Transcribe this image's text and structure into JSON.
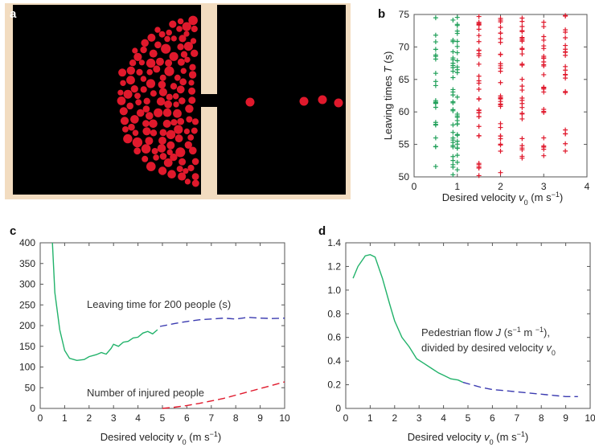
{
  "panels": {
    "a": {
      "letter": "a",
      "colors": {
        "background": "#000000",
        "wall": "#f2dcc0",
        "pedestrian": "#e0192c"
      }
    },
    "b": {
      "letter": "b"
    },
    "c": {
      "letter": "c"
    },
    "d": {
      "letter": "d"
    }
  },
  "chart_data": [
    {
      "panel": "b",
      "type": "scatter",
      "xlabel": "Desired velocity v0 (m s−1)",
      "xlabel_parts": {
        "main": "Desired velocity ",
        "v": "v",
        "sub": "0",
        "units": " (m s",
        "sup": "−1",
        "close": ")"
      },
      "ylabel": "Leaving times T (s)",
      "ylabel_parts": {
        "main": "Leaving times ",
        "var": "T",
        "units": " (s)"
      },
      "xlim": [
        0,
        4
      ],
      "ylim": [
        50,
        75
      ],
      "xticks": [
        "0",
        "1",
        "2",
        "3",
        "4"
      ],
      "yticks": [
        "50",
        "55",
        "60",
        "65",
        "70",
        "75"
      ],
      "marker": "+",
      "series": [
        {
          "color": "#21a05a",
          "x": 0.5,
          "y_range": [
            51,
            75
          ],
          "count": 22
        },
        {
          "color": "#21a05a",
          "x": 0.9,
          "y_range": [
            50,
            75
          ],
          "count": 30
        },
        {
          "color": "#21a05a",
          "x": 1.0,
          "y_range": [
            50,
            75
          ],
          "count": 28
        },
        {
          "color": "#e0192c",
          "x": 1.5,
          "y_range": [
            50,
            75
          ],
          "count": 34
        },
        {
          "color": "#e0192c",
          "x": 2.0,
          "y_range": [
            50,
            75
          ],
          "count": 32
        },
        {
          "color": "#e0192c",
          "x": 2.5,
          "y_range": [
            51,
            75
          ],
          "count": 30
        },
        {
          "color": "#e0192c",
          "x": 3.0,
          "y_range": [
            53,
            74
          ],
          "count": 26
        },
        {
          "color": "#e0192c",
          "x": 3.5,
          "y_range": [
            53,
            75
          ],
          "count": 22
        }
      ]
    },
    {
      "panel": "c",
      "type": "line",
      "xlabel": "Desired velocity v0 (m s−1)",
      "xlabel_parts": {
        "main": "Desired velocity ",
        "v": "v",
        "sub": "0",
        "units": " (m s",
        "sup": "−1",
        "close": ")"
      },
      "xlim": [
        0,
        10
      ],
      "ylim": [
        0,
        400
      ],
      "xticks": [
        "0",
        "1",
        "2",
        "3",
        "4",
        "5",
        "6",
        "7",
        "8",
        "9",
        "10"
      ],
      "yticks": [
        "0",
        "50",
        "100",
        "150",
        "200",
        "250",
        "300",
        "350",
        "400"
      ],
      "annotations": [
        "Leaving time for 200 people (s)",
        "Number of injured people"
      ],
      "series": [
        {
          "name": "Leaving time for 200 people (s)",
          "color": "#21b26a",
          "style": "solid",
          "x": [
            0.5,
            0.6,
            0.8,
            1.0,
            1.2,
            1.5,
            1.8,
            2.0,
            2.3,
            2.5,
            2.7,
            2.9,
            3.0,
            3.2,
            3.4,
            3.6,
            3.8,
            4.0,
            4.2,
            4.4,
            4.6,
            4.8
          ],
          "y": [
            400,
            280,
            190,
            140,
            121,
            116,
            118,
            125,
            130,
            135,
            131,
            145,
            155,
            150,
            160,
            162,
            170,
            172,
            182,
            186,
            180,
            190
          ]
        },
        {
          "name": "Leaving time for 200 people (s)",
          "color": "#3a3ab0",
          "style": "dashed",
          "x": [
            4.9,
            5.5,
            6.0,
            6.5,
            7.0,
            7.5,
            8.0,
            8.5,
            9.0,
            9.5,
            10.0
          ],
          "y": [
            198,
            205,
            210,
            214,
            216,
            218,
            216,
            220,
            218,
            217,
            218
          ]
        },
        {
          "name": "Number of injured people",
          "color": "#e0192c",
          "style": "dashed",
          "x": [
            5.0,
            5.5,
            6.0,
            6.5,
            7.0,
            7.5,
            8.0,
            8.5,
            9.0,
            9.5,
            10.0
          ],
          "y": [
            0,
            3,
            7,
            12,
            18,
            24,
            32,
            40,
            48,
            56,
            64
          ]
        }
      ]
    },
    {
      "panel": "d",
      "type": "line",
      "xlabel": "Desired velocity v0 (m s−1)",
      "xlabel_parts": {
        "main": "Desired velocity ",
        "v": "v",
        "sub": "0",
        "units": " (m s",
        "sup": "−1",
        "close": ")"
      },
      "xlim": [
        0,
        10
      ],
      "ylim": [
        0,
        1.4
      ],
      "xticks": [
        "0",
        "1",
        "2",
        "3",
        "4",
        "5",
        "6",
        "7",
        "8",
        "9",
        "10"
      ],
      "yticks": [
        "0",
        "0.2",
        "0.4",
        "0.6",
        "0.8",
        "1.0",
        "1.2",
        "1.4"
      ],
      "annotation_lines": [
        "Pedestrian flow J (s−1 m −1),",
        "divided by desired velocity v0"
      ],
      "annotation_parts": {
        "l1a": "Pedestrian flow ",
        "l1var": "J",
        "l1b": " (s",
        "l1sup1": "−1",
        "l1c": " m ",
        "l1sup2": "−1",
        "l1d": "),",
        "l2a": "divided by desired velocity ",
        "l2v": "v",
        "l2sub": "0"
      },
      "series": [
        {
          "color": "#21b26a",
          "style": "solid",
          "x": [
            0.3,
            0.5,
            0.8,
            1.0,
            1.2,
            1.5,
            1.8,
            2.0,
            2.3,
            2.6,
            2.9,
            3.2,
            3.5,
            3.8,
            4.0,
            4.3,
            4.6,
            4.8
          ],
          "y": [
            1.1,
            1.2,
            1.29,
            1.3,
            1.28,
            1.1,
            0.88,
            0.74,
            0.6,
            0.52,
            0.42,
            0.38,
            0.34,
            0.3,
            0.28,
            0.25,
            0.24,
            0.22
          ]
        },
        {
          "color": "#3a3ab0",
          "style": "dashed",
          "x": [
            4.8,
            5.5,
            6.0,
            6.5,
            7.0,
            7.5,
            8.0,
            8.5,
            9.0,
            9.5
          ],
          "y": [
            0.22,
            0.18,
            0.16,
            0.15,
            0.14,
            0.13,
            0.12,
            0.11,
            0.1,
            0.1
          ]
        }
      ]
    }
  ]
}
